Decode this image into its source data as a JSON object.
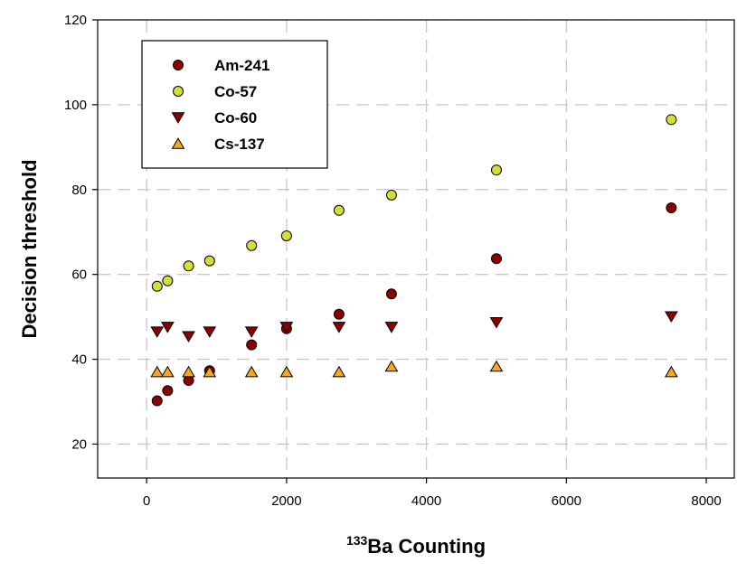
{
  "chart_data": {
    "type": "scatter",
    "xlabel_sup": "133",
    "xlabel": "Ba Counting",
    "ylabel": "Decision threshold",
    "xlim": [
      -700,
      8400
    ],
    "ylim": [
      12,
      120
    ],
    "xticks": [
      0,
      2000,
      4000,
      6000,
      8000
    ],
    "yticks": [
      20,
      40,
      60,
      80,
      100,
      120
    ],
    "xtick_labels": [
      "0",
      "2000",
      "4000",
      "6000",
      "8000"
    ],
    "ytick_labels": [
      "20",
      "40",
      "60",
      "80",
      "100",
      "120"
    ],
    "grid": true,
    "legend_position": "top-left",
    "series": [
      {
        "name": "Am-241",
        "marker": "circle",
        "color": "#8b0000",
        "x": [
          150,
          300,
          600,
          900,
          1500,
          2000,
          2750,
          3500,
          5000,
          7500
        ],
        "y": [
          30.2,
          32.6,
          35.0,
          37.3,
          43.4,
          47.2,
          50.6,
          55.4,
          63.7,
          75.7
        ]
      },
      {
        "name": "Co-57",
        "marker": "circle",
        "color": "#d4dd3c",
        "x": [
          150,
          300,
          600,
          900,
          1500,
          2000,
          2750,
          3500,
          5000,
          7500
        ],
        "y": [
          57.2,
          58.5,
          62.0,
          63.2,
          66.8,
          69.1,
          75.1,
          78.7,
          84.6,
          96.5
        ]
      },
      {
        "name": "Co-60",
        "marker": "triangle-down",
        "color": "#8b0000",
        "x": [
          150,
          300,
          600,
          900,
          1500,
          2000,
          2750,
          3500,
          5000,
          7500
        ],
        "y": [
          46.5,
          47.6,
          45.4,
          46.5,
          46.5,
          47.6,
          47.6,
          47.6,
          48.7,
          50.1
        ]
      },
      {
        "name": "Cs-137",
        "marker": "triangle-up",
        "color": "#f5a623",
        "x": [
          150,
          300,
          600,
          900,
          1500,
          2000,
          2750,
          3500,
          5000,
          7500
        ],
        "y": [
          37.0,
          37.0,
          37.0,
          37.0,
          37.0,
          37.0,
          37.0,
          38.3,
          38.3,
          37.0
        ]
      }
    ]
  }
}
